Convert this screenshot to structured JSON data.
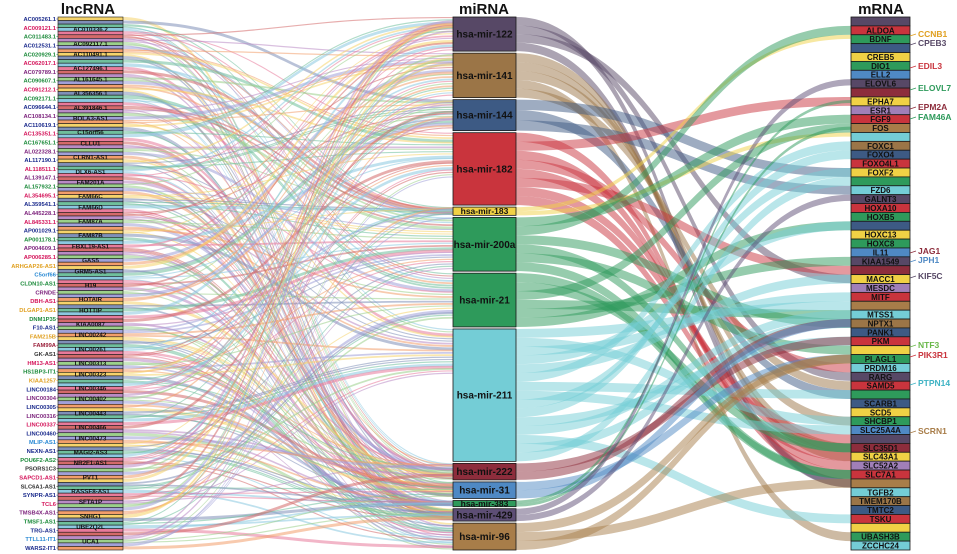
{
  "titles": {
    "lncrna": "lncRNA",
    "mirna": "miRNA",
    "mrna": "mRNA"
  },
  "lncrna": {
    "box_labels": [
      "AC010336.2",
      "AC092117.1",
      "AC110491.1",
      "AC127496.1",
      "AL161645.1",
      "AL356356.1",
      "AL391846.1",
      "BOLA3-AS1",
      "C15orf56",
      "CLLU1",
      "CLRN1-AS1",
      "DLX6-AS1",
      "FAM201A",
      "FAM66C",
      "FAM66D",
      "FAM87A",
      "FAM87B",
      "FBXL19-AS1",
      "GAS5",
      "GRM5-AS1",
      "H19",
      "HOTAIR",
      "HOTTIP",
      "KIAA0087",
      "LINC00242",
      "LINC00261",
      "LINC00313",
      "LINC00323",
      "LINC00346",
      "LINC00402",
      "LINC00443",
      "LINC00466",
      "LINC00473",
      "MAGI2-AS3",
      "NR2F1-AS1",
      "PVT1",
      "RASSF8-AS1",
      "SFTA1P",
      "SNHG1",
      "UBE2Q2L",
      "UCA1"
    ],
    "side_labels": [
      {
        "text": "AC005261.1",
        "color": "#1a2a8c"
      },
      {
        "text": "AC009121.1",
        "color": "#d4145a"
      },
      {
        "text": "AC011483.1",
        "color": "#1b8a3a"
      },
      {
        "text": "AC012531.1",
        "color": "#1a2a8c"
      },
      {
        "text": "AC020929.1",
        "color": "#1b8a3a"
      },
      {
        "text": "AC062017.1",
        "color": "#d4145a"
      },
      {
        "text": "AC079789.1",
        "color": "#7a1f7a"
      },
      {
        "text": "AC090607.1",
        "color": "#1b8a3a"
      },
      {
        "text": "AC091212.1",
        "color": "#d4145a"
      },
      {
        "text": "AC092171.1",
        "color": "#1b8a3a"
      },
      {
        "text": "AC096644.1",
        "color": "#1a2a8c"
      },
      {
        "text": "AC108134.1",
        "color": "#7a1f7a"
      },
      {
        "text": "AC110619.1",
        "color": "#1a2a8c"
      },
      {
        "text": "AC135351.1",
        "color": "#d4145a"
      },
      {
        "text": "AC167651.1",
        "color": "#1b8a3a"
      },
      {
        "text": "AL022328.1",
        "color": "#7a1f7a"
      },
      {
        "text": "AL117190.1",
        "color": "#1a2a8c"
      },
      {
        "text": "AL118511.1",
        "color": "#d4145a"
      },
      {
        "text": "AL139147.1",
        "color": "#7a1f7a"
      },
      {
        "text": "AL157932.1",
        "color": "#1b8a3a"
      },
      {
        "text": "AL354695.1",
        "color": "#d4145a"
      },
      {
        "text": "AL359541.1",
        "color": "#1a2a8c"
      },
      {
        "text": "AL445228.1",
        "color": "#7a1f7a"
      },
      {
        "text": "AL845331.1",
        "color": "#d4145a"
      },
      {
        "text": "AP001029.1",
        "color": "#1a2a8c"
      },
      {
        "text": "AP001178.1",
        "color": "#1b8a3a"
      },
      {
        "text": "AP004609.1",
        "color": "#7a1f7a"
      },
      {
        "text": "AP006285.1",
        "color": "#d4145a"
      },
      {
        "text": "ARHGAP26-AS1",
        "color": "#e0a020"
      },
      {
        "text": "C5orf66",
        "color": "#2a8ad4"
      },
      {
        "text": "CLDN10-AS1",
        "color": "#1b8a3a"
      },
      {
        "text": "CRNDE",
        "color": "#7a1f7a"
      },
      {
        "text": "DBH-AS1",
        "color": "#d4145a"
      },
      {
        "text": "DLGAP1-AS1",
        "color": "#e0a020"
      },
      {
        "text": "DNM1P35",
        "color": "#1b8a3a"
      },
      {
        "text": "F10-AS1",
        "color": "#1a2a8c"
      },
      {
        "text": "FAM215B",
        "color": "#e0a020"
      },
      {
        "text": "FAM99A",
        "color": "#9a1f3a"
      },
      {
        "text": "GK-AS1",
        "color": "#333333"
      },
      {
        "text": "HM13-AS1",
        "color": "#d4145a"
      },
      {
        "text": "HS1BP3-IT1",
        "color": "#1b8a3a"
      },
      {
        "text": "KIAA1257",
        "color": "#e0a020"
      },
      {
        "text": "LINC00184",
        "color": "#1a2a8c"
      },
      {
        "text": "LINC00304",
        "color": "#7a1f7a"
      },
      {
        "text": "LINC00305",
        "color": "#1a2a8c"
      },
      {
        "text": "LINC00316",
        "color": "#7a1f7a"
      },
      {
        "text": "LINC00337",
        "color": "#d4145a"
      },
      {
        "text": "LINC00460",
        "color": "#1a2a8c"
      },
      {
        "text": "MLIP-AS1",
        "color": "#2a8ad4"
      },
      {
        "text": "NEXN-AS1",
        "color": "#1a2a8c"
      },
      {
        "text": "POU6F2-AS2",
        "color": "#1b8a3a"
      },
      {
        "text": "PSORS1C3",
        "color": "#333333"
      },
      {
        "text": "SAPCD1-AS1",
        "color": "#d4145a"
      },
      {
        "text": "SLC6A1-AS1",
        "color": "#333333"
      },
      {
        "text": "SYNPR-AS1",
        "color": "#1a2a8c"
      },
      {
        "text": "TCL6",
        "color": "#d4145a"
      },
      {
        "text": "TMSB4X-AS1",
        "color": "#7a1f7a"
      },
      {
        "text": "TMSF1-AS1",
        "color": "#1b8a3a"
      },
      {
        "text": "TRG-AS1",
        "color": "#1a2a8c"
      },
      {
        "text": "TTLL11-IT1",
        "color": "#2a8ad4"
      },
      {
        "text": "WARS2-IT1",
        "color": "#1a2a8c"
      }
    ]
  },
  "mirna": {
    "nodes": [
      {
        "label": "hsa-mir-122",
        "color": "#574866"
      },
      {
        "label": "hsa-mir-141",
        "color": "#9b7547"
      },
      {
        "label": "hsa-mir-144",
        "color": "#3d5a84"
      },
      {
        "label": "hsa-mir-182",
        "color": "#c9343d"
      },
      {
        "label": "hsa-mir-183",
        "color": "#f0d145"
      },
      {
        "label": "hsa-mir-200a",
        "color": "#2e9a5b"
      },
      {
        "label": "hsa-mir-21",
        "color": "#2e9a5b"
      },
      {
        "label": "hsa-mir-211",
        "color": "#74cdd6"
      },
      {
        "label": "hsa-mir-222",
        "color": "#8d2d3c"
      },
      {
        "label": "hsa-mir-31",
        "color": "#4f89c4"
      },
      {
        "label": "hsa-mir-383",
        "color": "#2e9a5b"
      },
      {
        "label": "hsa-mir-429",
        "color": "#5d4e75"
      },
      {
        "label": "hsa-mir-96",
        "color": "#a87d49"
      }
    ]
  },
  "mrna": {
    "box_labels": [
      "ALDOA",
      "BDNF",
      "CREB5",
      "DIO1",
      "ELL2",
      "ELOVL6",
      "EPHA7",
      "ESR1",
      "FGF9",
      "FOS",
      "FOXC1",
      "FOXO4",
      "FOXO4L1",
      "FOXF2",
      "FZD6",
      "GALNT3",
      "HOXA10",
      "HOXB5",
      "HOXC13",
      "HOXC8",
      "IL11",
      "KIAA1549",
      "MACC1",
      "MESDC",
      "MITF",
      "MTSS1",
      "NPTX1",
      "PANK1",
      "PKM",
      "PLAGL1",
      "PRDM16",
      "RARG",
      "SAMD5",
      "SCARB1",
      "SCD5",
      "SHCBP1",
      "SLC25A4A",
      "SLC35D1",
      "SLC43A1",
      "SLC52A2",
      "SLC7A1",
      "TGFB2",
      "TMEM170B",
      "TMTC2",
      "TSKU",
      "UBASH3B",
      "ZCCHC24"
    ],
    "side_labels": [
      {
        "text": "CCNB1",
        "color": "#e0a020"
      },
      {
        "text": "CPEB3",
        "color": "#574866"
      },
      {
        "text": "EDIL3",
        "color": "#c9343d"
      },
      {
        "text": "ELOVL7",
        "color": "#2e9a5b"
      },
      {
        "text": "EPM2A",
        "color": "#8d2d3c"
      },
      {
        "text": "FAM46A",
        "color": "#2e9a5b"
      },
      {
        "text": "JAG1",
        "color": "#8d2d3c"
      },
      {
        "text": "JPH1",
        "color": "#4f89c4"
      },
      {
        "text": "KIF5C",
        "color": "#574866"
      },
      {
        "text": "NTF3",
        "color": "#6ab84a"
      },
      {
        "text": "PIK3R1",
        "color": "#c9343d"
      },
      {
        "text": "PTPN14",
        "color": "#3fb3c4"
      },
      {
        "text": "SCRN1",
        "color": "#a87d49"
      }
    ]
  },
  "colors": {
    "lnc_palette": [
      "#7f8fb8",
      "#e87a9a",
      "#9bd08a",
      "#f5d36b",
      "#8bc8e0",
      "#b98bc5",
      "#f29e6b",
      "#6fbf9c",
      "#d46a6a",
      "#a0a0d8"
    ],
    "box_border": "#1a1a1a"
  }
}
